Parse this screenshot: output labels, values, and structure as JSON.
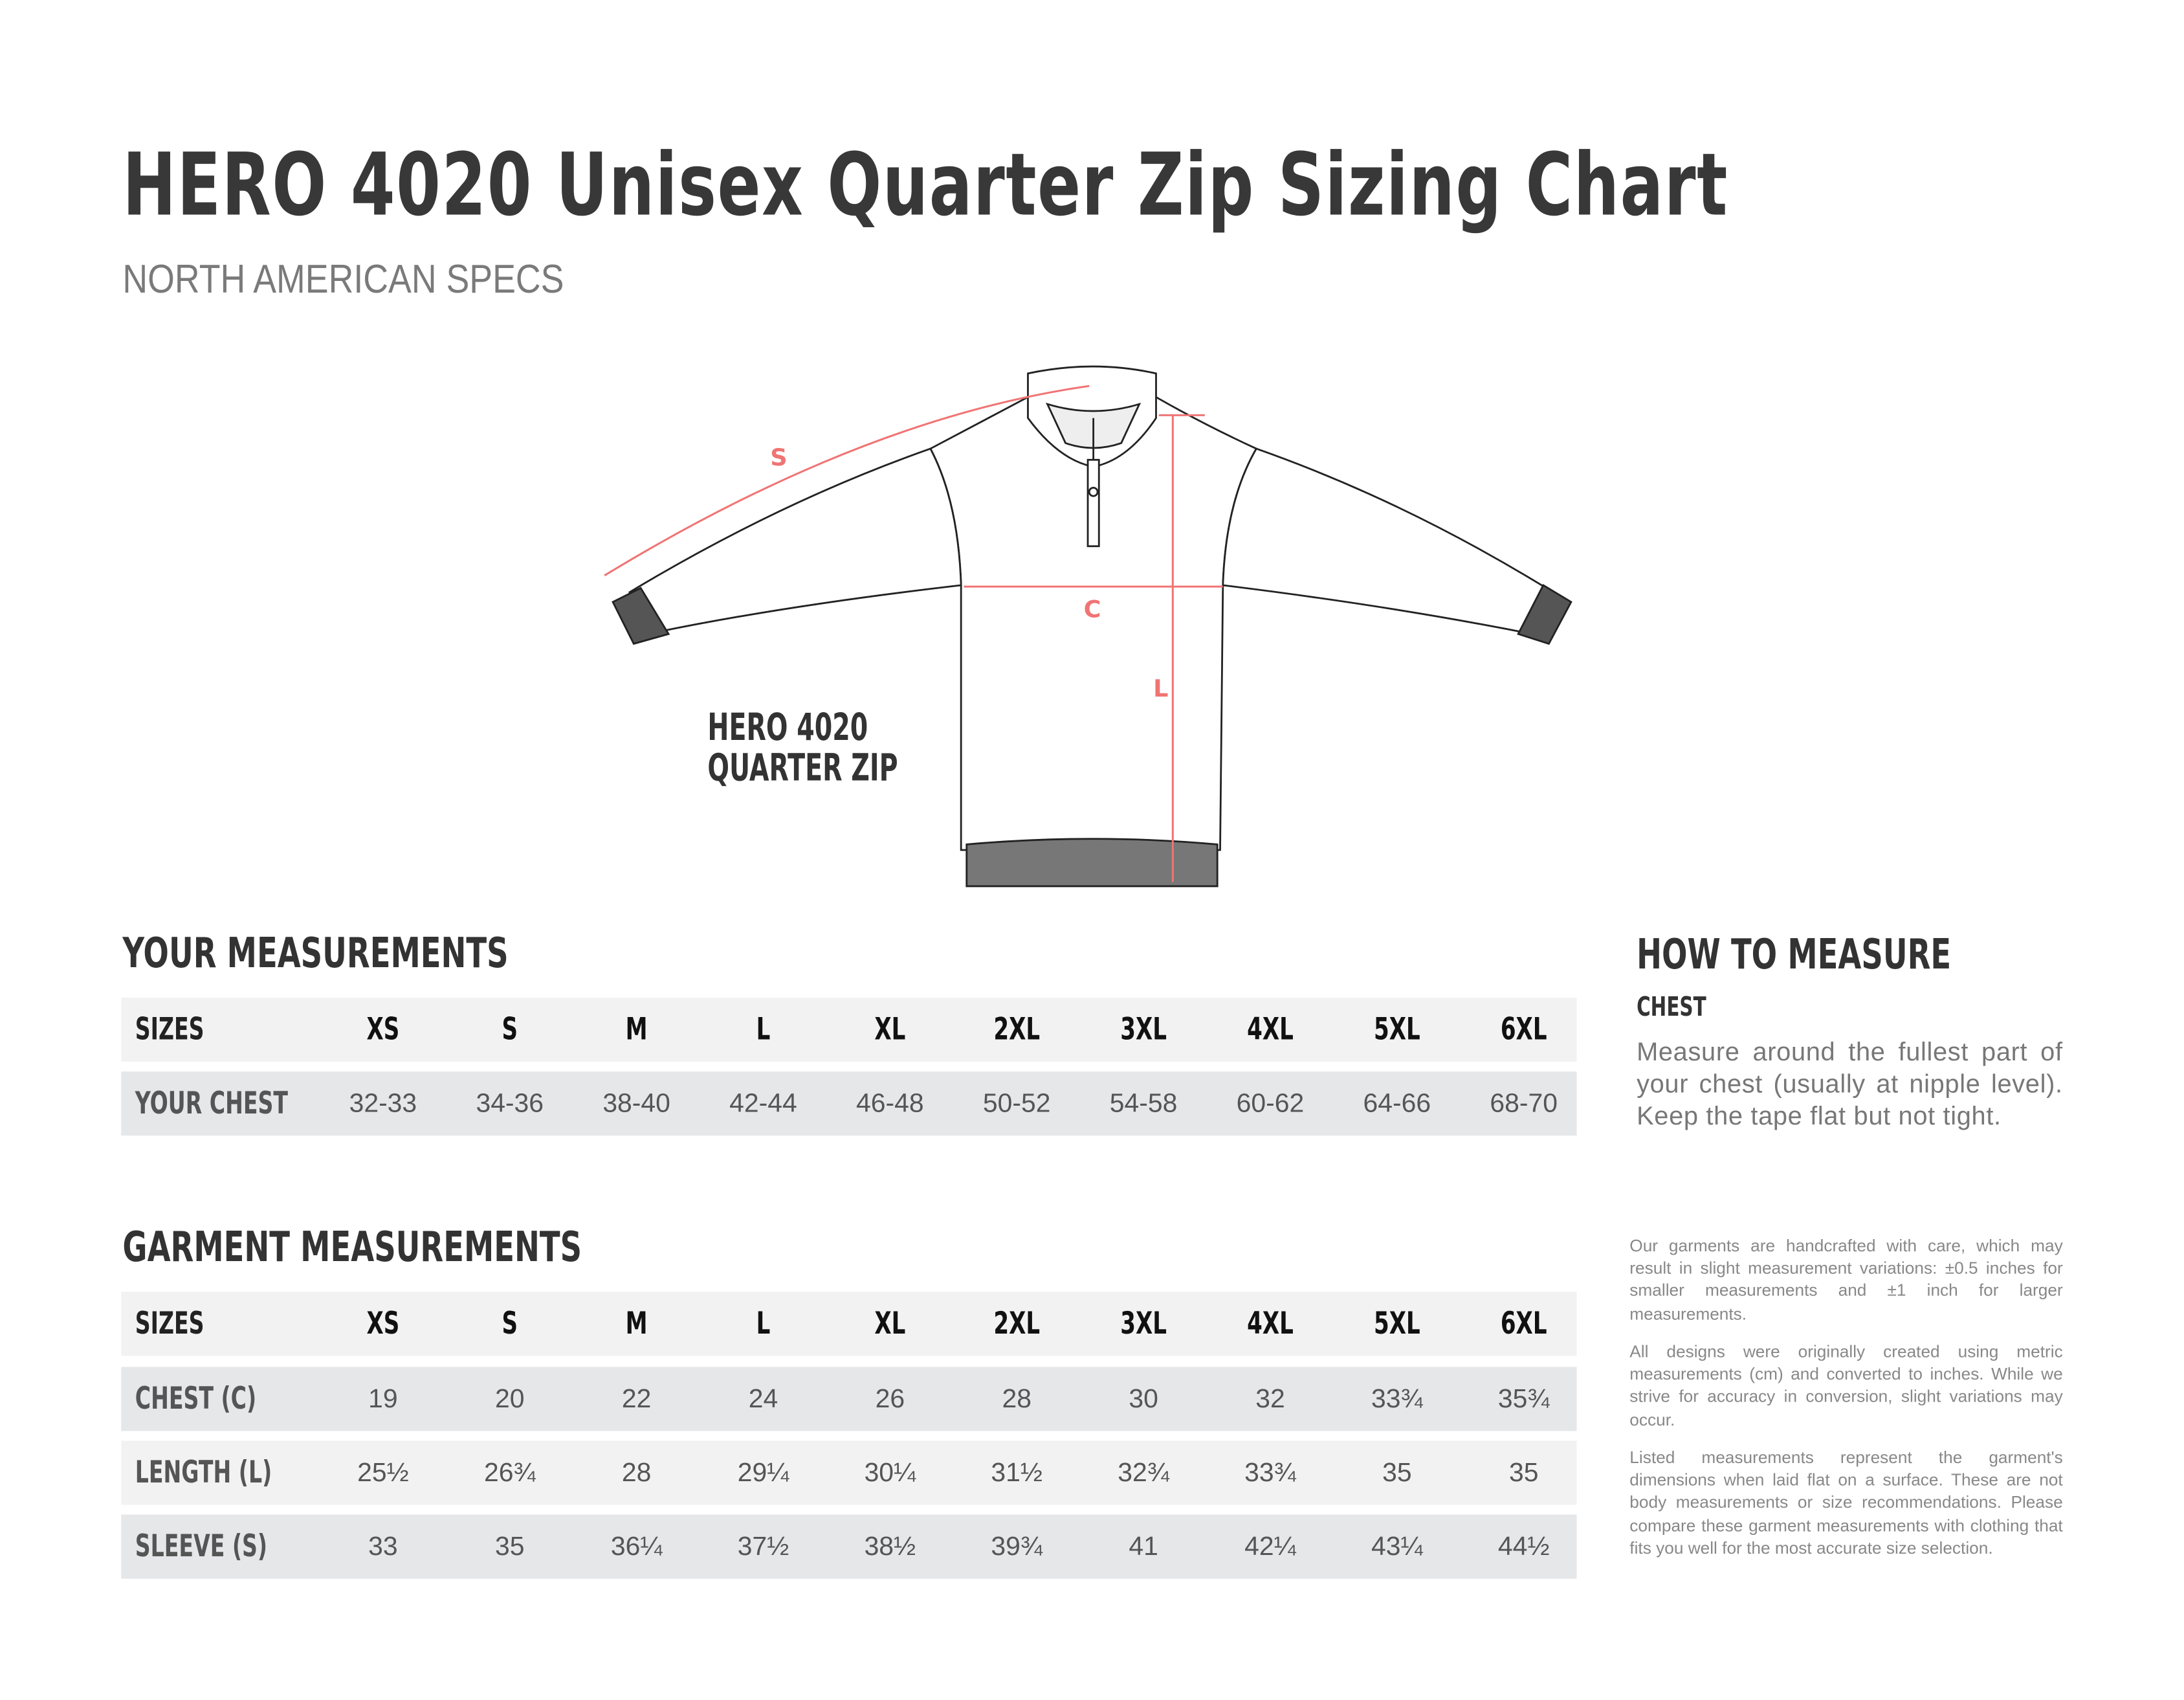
{
  "header": {
    "title": "HERO 4020 Unisex Quarter Zip Sizing Chart",
    "subtitle": "NORTH AMERICAN SPECS"
  },
  "diagram": {
    "product_label_line1": "HERO 4020",
    "product_label_line2": "QUARTER ZIP",
    "markers": {
      "sleeve": "S",
      "chest": "C",
      "length": "L"
    },
    "accent_color": "#f07474"
  },
  "sizes": [
    "XS",
    "S",
    "M",
    "L",
    "XL",
    "2XL",
    "3XL",
    "4XL",
    "5XL",
    "6XL"
  ],
  "your_measurements": {
    "title": "YOUR MEASUREMENTS",
    "header_label": "SIZES",
    "rows": [
      {
        "label": "YOUR CHEST",
        "values": [
          "32-33",
          "34-36",
          "38-40",
          "42-44",
          "46-48",
          "50-52",
          "54-58",
          "60-62",
          "64-66",
          "68-70"
        ]
      }
    ]
  },
  "garment_measurements": {
    "title": "GARMENT MEASUREMENTS",
    "header_label": "SIZES",
    "rows": [
      {
        "label": "CHEST (C)",
        "values": [
          "19",
          "20",
          "22",
          "24",
          "26",
          "28",
          "30",
          "32",
          "33¾",
          "35¾"
        ]
      },
      {
        "label": "LENGTH (L)",
        "values": [
          "25½",
          "26¾",
          "28",
          "29¼",
          "30¼",
          "31½",
          "32¾",
          "33¾",
          "35",
          "35"
        ]
      },
      {
        "label": "SLEEVE (S)",
        "values": [
          "33",
          "35",
          "36¼",
          "37½",
          "38½",
          "39¾",
          "41",
          "42¼",
          "43¼",
          "44½"
        ]
      }
    ]
  },
  "how_to_measure": {
    "title": "HOW TO MEASURE",
    "chest_label": "CHEST",
    "chest_text": "Measure around the fullest part of your chest (usually at nipple level). Keep the tape flat but not tight."
  },
  "notes": [
    "Our garments are handcrafted with care, which may result in slight measurement variations: ±0.5 inches for smaller measurements and ±1 inch for larger measurements.",
    "All designs were originally created using metric measurements (cm) and converted to inches. While we strive for accuracy in conversion, slight variations may occur.",
    "Listed measurements represent the garment's dimensions when laid flat on a surface. These are not body measurements or size recommendations. Please compare these garment measurements with clothing that fits you well for the most accurate size selection."
  ]
}
